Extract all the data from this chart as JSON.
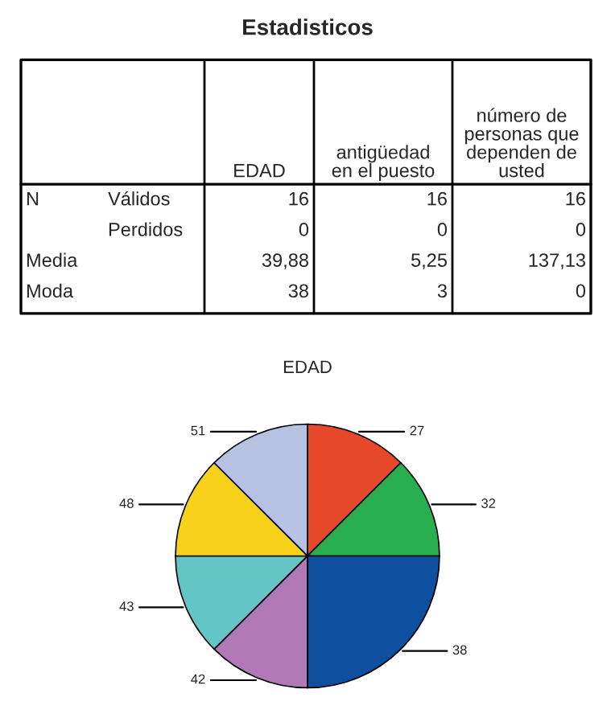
{
  "chart_data": [
    {
      "type": "other",
      "title": "Estadisticos",
      "annotations": [
        "EDAD",
        "antigüedad\nen el puesto",
        "número de\npersonas que\ndependen de\nusted",
        "N",
        "Válidos",
        "16",
        "16",
        "16",
        "Perdidos",
        "0",
        "0",
        "0",
        "Media",
        "39,88",
        "5,25",
        "137,13",
        "Moda",
        "38",
        "3",
        "0"
      ]
    },
    {
      "type": "pie",
      "title": "EDAD",
      "categories": [
        "27",
        "32",
        "38",
        "42",
        "43",
        "48",
        "51"
      ],
      "values": [
        12.5,
        12.5,
        25,
        12.5,
        12.5,
        12.5,
        12.5
      ],
      "colors": [
        "#e8482a",
        "#27ae4f",
        "#0f4fa0",
        "#b07ab6",
        "#63c5c6",
        "#f8d21a",
        "#b6c2e2"
      ]
    }
  ]
}
